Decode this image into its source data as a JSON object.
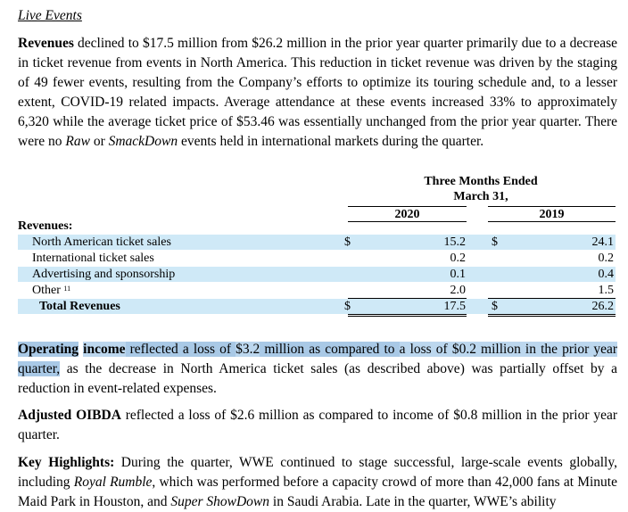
{
  "section_heading": "Live Events",
  "para1": {
    "bold_lead": "Revenues",
    "t1": " declined to $17.5 million from $26.2 million in the prior year quarter primarily due to a decrease in ticket revenue from events in North America. This reduction in ticket revenue was driven by the staging of 49 fewer events, resulting from the Company’s efforts to optimize its touring schedule and, to a lesser extent, COVID-19 related impacts. Average attendance at these events increased 33% to approximately 6,320 while the average ticket price of $53.46 was essentially unchanged from the prior year quarter. There were no ",
    "raw": "Raw",
    "t2": " or ",
    "smackdown": "SmackDown",
    "t3": " events held in international markets during the quarter."
  },
  "table": {
    "header_line1": "Three Months Ended",
    "header_line2": "March 31,",
    "year1": "2020",
    "year2": "2019",
    "section_label": "Revenues:",
    "currency": "$",
    "rows": [
      {
        "label": "North American ticket sales",
        "v2020": "15.2",
        "v2019": "24.1"
      },
      {
        "label": "International ticket sales",
        "v2020": "0.2",
        "v2019": "0.2"
      },
      {
        "label": "Advertising and sponsorship",
        "v2020": "0.1",
        "v2019": "0.4"
      },
      {
        "label": "Other",
        "footnote": "11",
        "v2020": "2.0",
        "v2019": "1.5"
      }
    ],
    "total": {
      "label": "Total Revenues",
      "v2020": "17.5",
      "v2019": "26.2"
    }
  },
  "para2": {
    "s1": "Operating",
    "s2": " ",
    "s3": "income",
    "s4": " reflected a loss of ",
    "s5": "$3.2",
    "s6": " million as compared to ",
    "s7": "a loss of $0.2 million in the prior year",
    "s8": " ",
    "s9": "quarter,",
    "s10": " as the decrease in North America ticket sales (as described above) was partially offset by a reduction in event-related expenses."
  },
  "para3": {
    "bold_lead": "Adjusted OIBDA",
    "text": " reflected a loss of $2.6 million as compared to income of $0.8 million in the prior year quarter."
  },
  "para4": {
    "bold_lead": "Key Highlights:",
    "t1": " During the quarter, WWE continued to stage successful, large-scale events globally, including ",
    "royal_rumble": "Royal Rumble",
    "t2": ", which was performed before a capacity crowd of more than 42,000 fans at Minute Maid Park in Houston, and ",
    "super_showdown": "Super ShowDown",
    "t3": " in Saudi Arabia. Late in the quarter, WWE’s ability"
  },
  "colors": {
    "highlight": "#bcd7ee",
    "row_shade": "#cfe9f7"
  }
}
